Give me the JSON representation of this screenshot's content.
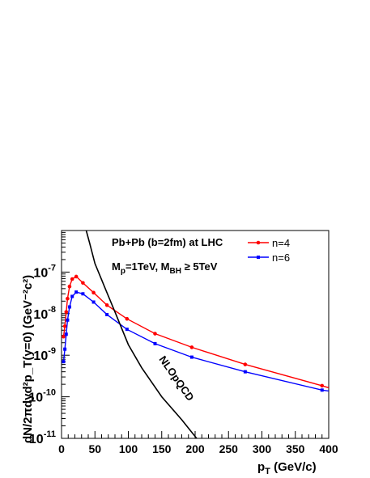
{
  "chart_data": {
    "type": "line",
    "xlabel": "p",
    "xlabel_sub": "T",
    "xlabel_unit": " (GeV/c)",
    "ylabel": "dN/2πdyd²p_T(y=0) (GeV⁻²c²)",
    "xlim": [
      0,
      400
    ],
    "ylim": [
      1e-11,
      1e-06
    ],
    "yscale": "log",
    "x_ticks": [
      "0",
      "50",
      "100",
      "150",
      "200",
      "250",
      "300",
      "350",
      "400"
    ],
    "y_ticks": [
      {
        "base": "10",
        "exp": "-7",
        "value": 1e-07
      },
      {
        "base": "10",
        "exp": "-8",
        "value": 1e-08
      },
      {
        "base": "10",
        "exp": "-9",
        "value": 1e-09
      },
      {
        "base": "10",
        "exp": "-10",
        "value": 1e-10
      },
      {
        "base": "10",
        "exp": "-11",
        "value": 1e-11
      }
    ],
    "annotations": {
      "line1": "Pb+Pb (b=2fm) at LHC",
      "line2_a": "M",
      "line2_a_sub": "p",
      "line2_b": "=1TeV, M",
      "line2_b_sub": "BH",
      "line2_c": " ≥ 5TeV",
      "curve_label": "NLOpQCD"
    },
    "legend_position": "top-right",
    "series": [
      {
        "name": "n=4",
        "color": "#ff0000",
        "marker": "circle",
        "points": [
          [
            3,
            2.8e-09
          ],
          [
            5,
            5e-09
          ],
          [
            7,
            1.1e-08
          ],
          [
            9,
            2.3e-08
          ],
          [
            12,
            4.5e-08
          ],
          [
            16,
            6.8e-08
          ],
          [
            22,
            7.8e-08
          ],
          [
            32,
            5.5e-08
          ],
          [
            48,
            3.2e-08
          ],
          [
            68,
            1.6e-08
          ],
          [
            98,
            7.5e-09
          ],
          [
            140,
            3.3e-09
          ],
          [
            195,
            1.55e-09
          ],
          [
            275,
            6e-10
          ],
          [
            390,
            1.85e-10
          ],
          [
            400,
            1.65e-10
          ]
        ]
      },
      {
        "name": "n=6",
        "color": "#0000ff",
        "marker": "square",
        "points": [
          [
            3,
            7e-10
          ],
          [
            5,
            1.4e-09
          ],
          [
            7,
            3.2e-09
          ],
          [
            9,
            7e-09
          ],
          [
            12,
            1.45e-08
          ],
          [
            16,
            2.6e-08
          ],
          [
            22,
            3.3e-08
          ],
          [
            32,
            3e-08
          ],
          [
            48,
            1.9e-08
          ],
          [
            68,
            9.5e-09
          ],
          [
            98,
            4.2e-09
          ],
          [
            140,
            1.9e-09
          ],
          [
            195,
            9e-10
          ],
          [
            275,
            4e-10
          ],
          [
            390,
            1.45e-10
          ],
          [
            400,
            1.38e-10
          ]
        ]
      },
      {
        "name": "NLOpQCD",
        "color": "#000000",
        "marker": "none",
        "points": [
          [
            37,
            1e-06
          ],
          [
            42,
            5e-07
          ],
          [
            50,
            1.6e-07
          ],
          [
            65,
            4.2e-08
          ],
          [
            80,
            1.1e-08
          ],
          [
            100,
            1.8e-09
          ],
          [
            120,
            5e-10
          ],
          [
            150,
            1e-10
          ],
          [
            180,
            2.8e-11
          ],
          [
            210,
            7e-12
          ]
        ]
      }
    ]
  }
}
